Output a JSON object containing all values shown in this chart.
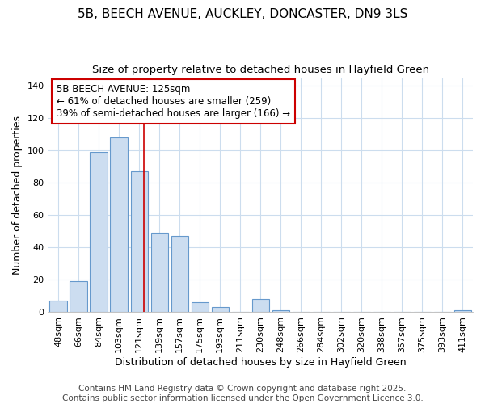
{
  "title1": "5B, BEECH AVENUE, AUCKLEY, DONCASTER, DN9 3LS",
  "title2": "Size of property relative to detached houses in Hayfield Green",
  "xlabel": "Distribution of detached houses by size in Hayfield Green",
  "ylabel": "Number of detached properties",
  "bar_labels": [
    "48sqm",
    "66sqm",
    "84sqm",
    "103sqm",
    "121sqm",
    "139sqm",
    "157sqm",
    "175sqm",
    "193sqm",
    "211sqm",
    "230sqm",
    "248sqm",
    "266sqm",
    "284sqm",
    "302sqm",
    "320sqm",
    "338sqm",
    "357sqm",
    "375sqm",
    "393sqm",
    "411sqm"
  ],
  "bar_values": [
    7,
    19,
    99,
    108,
    87,
    49,
    47,
    6,
    3,
    0,
    8,
    1,
    0,
    0,
    0,
    0,
    0,
    0,
    0,
    0,
    1
  ],
  "bar_color": "#ccddf0",
  "bar_edgecolor": "#6699cc",
  "ref_line_color": "#cc0000",
  "annotation_text": "5B BEECH AVENUE: 125sqm\n← 61% of detached houses are smaller (259)\n39% of semi-detached houses are larger (166) →",
  "annotation_box_facecolor": "#ffffff",
  "annotation_box_edgecolor": "#cc0000",
  "ylim": [
    0,
    145
  ],
  "yticks": [
    0,
    20,
    40,
    60,
    80,
    100,
    120,
    140
  ],
  "background_color": "#ffffff",
  "grid_color": "#ccddee",
  "footer_text": "Contains HM Land Registry data © Crown copyright and database right 2025.\nContains public sector information licensed under the Open Government Licence 3.0.",
  "title1_fontsize": 11,
  "title2_fontsize": 9.5,
  "xlabel_fontsize": 9,
  "ylabel_fontsize": 9,
  "tick_fontsize": 8,
  "annotation_fontsize": 8.5,
  "footer_fontsize": 7.5
}
